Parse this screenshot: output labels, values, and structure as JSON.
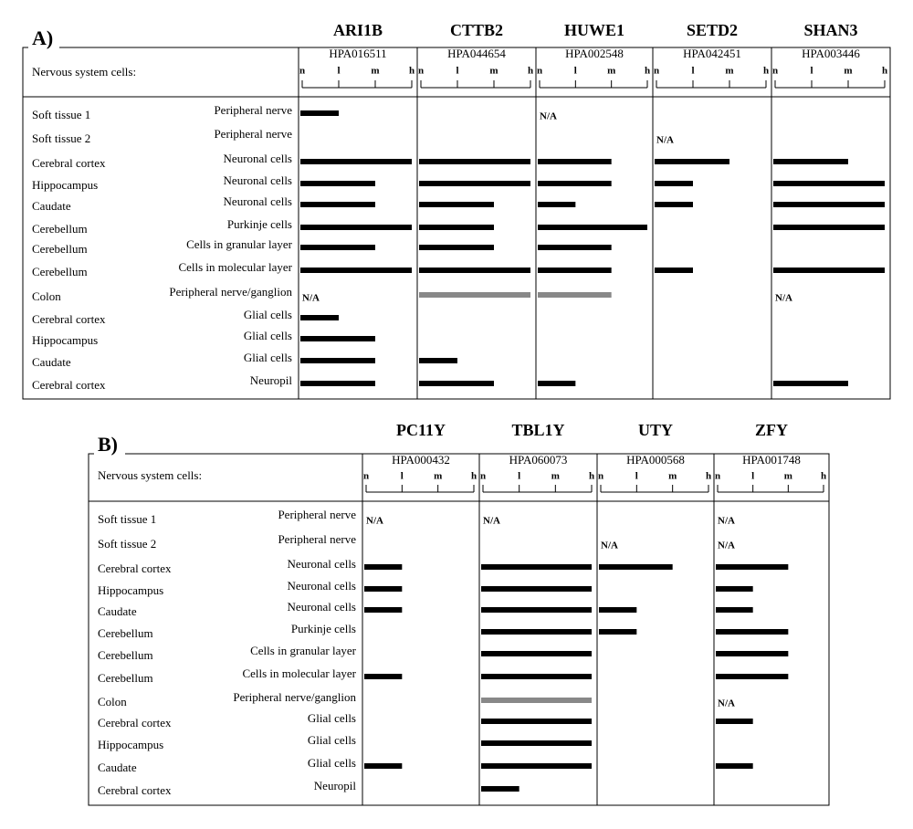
{
  "chart_data": [
    {
      "type": "bar",
      "title": "A)",
      "subtitle": "Nervous system cells:",
      "categories": [
        "Soft tissue 1",
        "Soft tissue 2",
        "Cerebral cortex",
        "Hippocampus",
        "Caudate",
        "Cerebellum",
        "Cerebellum",
        "Cerebellum",
        "Colon",
        "Cerebral cortex",
        "Hippocampus",
        "Caudate",
        "Cerebral cortex"
      ],
      "cell_types": [
        "Peripheral nerve",
        "Peripheral nerve",
        "Neuronal cells",
        "Neuronal cells",
        "Neuronal cells",
        "Purkinje cells",
        "Cells in granular layer",
        "Cells in molecular layer",
        "Peripheral nerve/ganglion",
        "Glial cells",
        "Glial cells",
        "Glial cells",
        "Neuropil"
      ],
      "xlim": [
        0,
        3
      ],
      "xticks": [
        {
          "value": 0,
          "label": "n"
        },
        {
          "value": 1,
          "label": "l"
        },
        {
          "value": 2,
          "label": "m"
        },
        {
          "value": 3,
          "label": "h"
        }
      ],
      "series": [
        {
          "name": "ARI1B",
          "antibody": "HPA016511",
          "values": [
            1,
            null,
            3,
            2,
            2,
            3,
            2,
            3,
            null,
            1,
            2,
            2,
            2
          ],
          "value_labels": [
            null,
            null,
            null,
            null,
            null,
            null,
            null,
            null,
            "N/A",
            null,
            null,
            null,
            null
          ],
          "colors": [
            "#000000",
            "#000000",
            "#000000",
            "#000000",
            "#000000",
            "#000000",
            "#000000",
            "#000000",
            "#000000",
            "#000000",
            "#000000",
            "#000000",
            "#000000"
          ]
        },
        {
          "name": "CTTB2",
          "antibody": "HPA044654",
          "values": [
            null,
            null,
            3,
            3,
            2,
            2,
            2,
            3,
            3,
            null,
            null,
            1,
            2
          ],
          "colors": [
            "#000000",
            "#000000",
            "#000000",
            "#000000",
            "#000000",
            "#000000",
            "#000000",
            "#000000",
            "#888888",
            "#000000",
            "#000000",
            "#000000",
            "#000000"
          ]
        },
        {
          "name": "HUWE1",
          "antibody": "HPA002548",
          "values": [
            null,
            null,
            2,
            2,
            1,
            3,
            2,
            2,
            2,
            null,
            null,
            null,
            1
          ],
          "value_labels": [
            "N/A",
            null,
            null,
            null,
            null,
            null,
            null,
            null,
            null,
            null,
            null,
            null,
            null
          ],
          "colors": [
            "#000000",
            "#000000",
            "#000000",
            "#000000",
            "#000000",
            "#000000",
            "#000000",
            "#000000",
            "#888888",
            "#000000",
            "#000000",
            "#000000",
            "#000000"
          ]
        },
        {
          "name": "SETD2",
          "antibody": "HPA042451",
          "values": [
            null,
            null,
            2,
            1,
            1,
            null,
            null,
            1,
            null,
            null,
            null,
            null,
            null
          ],
          "value_labels": [
            null,
            "N/A",
            null,
            null,
            null,
            null,
            null,
            null,
            null,
            null,
            null,
            null,
            null
          ],
          "colors": [
            "#000000",
            "#000000",
            "#000000",
            "#000000",
            "#000000",
            "#000000",
            "#000000",
            "#000000",
            "#000000",
            "#000000",
            "#000000",
            "#000000",
            "#000000"
          ]
        },
        {
          "name": "SHAN3",
          "antibody": "HPA003446",
          "values": [
            null,
            null,
            2,
            3,
            3,
            3,
            null,
            3,
            null,
            null,
            null,
            null,
            2
          ],
          "value_labels": [
            null,
            null,
            null,
            null,
            null,
            null,
            null,
            null,
            "N/A",
            null,
            null,
            null,
            null
          ],
          "colors": [
            "#000000",
            "#000000",
            "#000000",
            "#000000",
            "#000000",
            "#000000",
            "#000000",
            "#000000",
            "#000000",
            "#000000",
            "#000000",
            "#000000",
            "#000000"
          ]
        }
      ]
    },
    {
      "type": "bar",
      "title": "B)",
      "subtitle": "Nervous system cells:",
      "categories": [
        "Soft tissue 1",
        "Soft tissue 2",
        "Cerebral cortex",
        "Hippocampus",
        "Caudate",
        "Cerebellum",
        "Cerebellum",
        "Cerebellum",
        "Colon",
        "Cerebral cortex",
        "Hippocampus",
        "Caudate",
        "Cerebral cortex"
      ],
      "cell_types": [
        "Peripheral nerve",
        "Peripheral nerve",
        "Neuronal cells",
        "Neuronal cells",
        "Neuronal cells",
        "Purkinje cells",
        "Cells in granular layer",
        "Cells in molecular layer",
        "Peripheral nerve/ganglion",
        "Glial cells",
        "Glial cells",
        "Glial cells",
        "Neuropil"
      ],
      "xlim": [
        0,
        3
      ],
      "xticks": [
        {
          "value": 0,
          "label": "n"
        },
        {
          "value": 1,
          "label": "l"
        },
        {
          "value": 2,
          "label": "m"
        },
        {
          "value": 3,
          "label": "h"
        }
      ],
      "series": [
        {
          "name": "PC11Y",
          "antibody": "HPA000432",
          "values": [
            null,
            null,
            1,
            1,
            1,
            null,
            null,
            1,
            null,
            null,
            null,
            1,
            null
          ],
          "value_labels": [
            "N/A",
            null,
            null,
            null,
            null,
            null,
            null,
            null,
            null,
            null,
            null,
            null,
            null
          ],
          "colors": [
            "#000000",
            "#000000",
            "#000000",
            "#000000",
            "#000000",
            "#000000",
            "#000000",
            "#000000",
            "#000000",
            "#000000",
            "#000000",
            "#000000",
            "#000000"
          ]
        },
        {
          "name": "TBL1Y",
          "antibody": "HPA060073",
          "values": [
            null,
            null,
            3,
            3,
            3,
            3,
            3,
            3,
            3,
            3,
            3,
            3,
            1
          ],
          "value_labels": [
            "N/A",
            null,
            null,
            null,
            null,
            null,
            null,
            null,
            null,
            null,
            null,
            null,
            null
          ],
          "colors": [
            "#000000",
            "#000000",
            "#000000",
            "#000000",
            "#000000",
            "#000000",
            "#000000",
            "#000000",
            "#888888",
            "#000000",
            "#000000",
            "#000000",
            "#000000"
          ]
        },
        {
          "name": "UTY",
          "antibody": "HPA000568",
          "values": [
            null,
            null,
            2,
            null,
            1,
            1,
            null,
            null,
            null,
            null,
            null,
            null,
            null
          ],
          "value_labels": [
            null,
            "N/A",
            null,
            null,
            null,
            null,
            null,
            null,
            null,
            null,
            null,
            null,
            null
          ],
          "colors": [
            "#000000",
            "#000000",
            "#000000",
            "#000000",
            "#000000",
            "#000000",
            "#000000",
            "#000000",
            "#000000",
            "#000000",
            "#000000",
            "#000000",
            "#000000"
          ]
        },
        {
          "name": "ZFY",
          "antibody": "HPA001748",
          "values": [
            null,
            null,
            2,
            1,
            1,
            2,
            2,
            2,
            null,
            1,
            null,
            1,
            null
          ],
          "value_labels": [
            "N/A",
            "N/A",
            null,
            null,
            null,
            null,
            null,
            null,
            "N/A",
            null,
            null,
            null,
            null
          ],
          "colors": [
            "#000000",
            "#000000",
            "#000000",
            "#000000",
            "#000000",
            "#000000",
            "#000000",
            "#000000",
            "#000000",
            "#000000",
            "#000000",
            "#000000",
            "#000000"
          ]
        }
      ]
    }
  ]
}
